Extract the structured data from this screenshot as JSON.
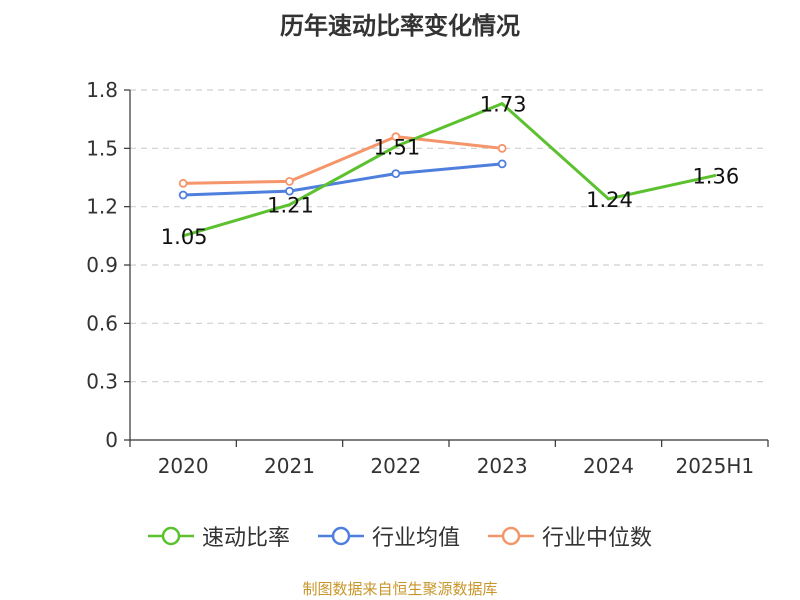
{
  "title": "历年速动比率变化情况",
  "source": "制图数据来自恒生聚源数据库",
  "chart_data": {
    "type": "line",
    "categories": [
      "2020",
      "2021",
      "2022",
      "2023",
      "2024",
      "2025H1"
    ],
    "ylim": [
      0,
      1.8
    ],
    "yticks": [
      "0",
      "0.3",
      "0.6",
      "0.9",
      "1.2",
      "1.5",
      "1.8"
    ],
    "grid": true,
    "legend_position": "bottom",
    "series": [
      {
        "name": "速动比率",
        "color": "#5cc12f",
        "values": [
          1.05,
          1.21,
          1.51,
          1.73,
          1.24,
          1.36
        ],
        "labels": [
          "1.05",
          "1.21",
          "1.51",
          "1.73",
          "1.24",
          "1.36"
        ]
      },
      {
        "name": "行业均值",
        "color": "#4f7fdc",
        "values": [
          1.26,
          1.28,
          1.37,
          1.42,
          null,
          null
        ]
      },
      {
        "name": "行业中位数",
        "color": "#f5956a",
        "values": [
          1.32,
          1.33,
          1.56,
          1.5,
          null,
          null
        ]
      }
    ]
  }
}
